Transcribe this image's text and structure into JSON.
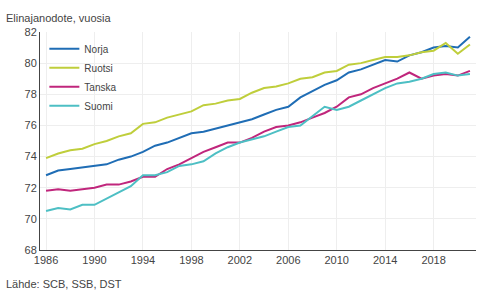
{
  "chart_data": {
    "type": "line",
    "ylabel": "Elinajanodote, vuosia",
    "annotations": [
      "Lähde: SCB, SSB, DST"
    ],
    "x": [
      1986,
      1987,
      1988,
      1989,
      1990,
      1991,
      1992,
      1993,
      1994,
      1995,
      1996,
      1997,
      1998,
      1999,
      2000,
      2001,
      2002,
      2003,
      2004,
      2005,
      2006,
      2007,
      2008,
      2009,
      2010,
      2011,
      2012,
      2013,
      2014,
      2015,
      2016,
      2017,
      2018,
      2019,
      2020,
      2021
    ],
    "series": [
      {
        "name": "Norja",
        "color": "#1F6DB5",
        "values": [
          72.8,
          73.1,
          73.2,
          73.3,
          73.4,
          73.5,
          73.8,
          74.0,
          74.3,
          74.7,
          74.9,
          75.2,
          75.5,
          75.6,
          75.8,
          76.0,
          76.2,
          76.4,
          76.7,
          77.0,
          77.2,
          77.8,
          78.2,
          78.6,
          78.9,
          79.4,
          79.6,
          79.9,
          80.2,
          80.1,
          80.5,
          80.7,
          81.0,
          81.1,
          81.0,
          81.7
        ]
      },
      {
        "name": "Ruotsi",
        "color": "#BFCE3B",
        "values": [
          73.9,
          74.2,
          74.4,
          74.5,
          74.8,
          75.0,
          75.3,
          75.5,
          76.1,
          76.2,
          76.5,
          76.7,
          76.9,
          77.3,
          77.4,
          77.6,
          77.7,
          78.1,
          78.4,
          78.5,
          78.7,
          79.0,
          79.1,
          79.4,
          79.5,
          79.9,
          80.0,
          80.2,
          80.4,
          80.4,
          80.5,
          80.7,
          80.8,
          81.3,
          80.6,
          81.2
        ]
      },
      {
        "name": "Tanska",
        "color": "#C0267C",
        "values": [
          71.8,
          71.9,
          71.8,
          71.9,
          72.0,
          72.2,
          72.2,
          72.4,
          72.7,
          72.7,
          73.2,
          73.5,
          73.9,
          74.3,
          74.6,
          74.9,
          74.9,
          75.2,
          75.6,
          75.9,
          76.0,
          76.2,
          76.5,
          76.8,
          77.2,
          77.8,
          78.0,
          78.4,
          78.7,
          79.0,
          79.4,
          79.0,
          79.2,
          79.3,
          79.2,
          79.5
        ]
      },
      {
        "name": "Suomi",
        "color": "#4DBFC4",
        "values": [
          70.5,
          70.7,
          70.6,
          70.9,
          70.9,
          71.3,
          71.7,
          72.1,
          72.8,
          72.8,
          73.0,
          73.4,
          73.5,
          73.7,
          74.2,
          74.6,
          74.9,
          75.1,
          75.3,
          75.6,
          75.9,
          76.0,
          76.6,
          77.2,
          77.0,
          77.2,
          77.6,
          78.0,
          78.4,
          78.7,
          78.8,
          79.0,
          79.3,
          79.4,
          79.2,
          79.3
        ]
      }
    ],
    "xlim": [
      1985.5,
      2021.5
    ],
    "xticks": [
      1986,
      1990,
      1994,
      1998,
      2002,
      2006,
      2010,
      2014,
      2018
    ],
    "ylim": [
      68,
      82
    ],
    "yticks": [
      68,
      70,
      72,
      74,
      76,
      78,
      80,
      82
    ],
    "grid": true,
    "legend": "upper left"
  }
}
